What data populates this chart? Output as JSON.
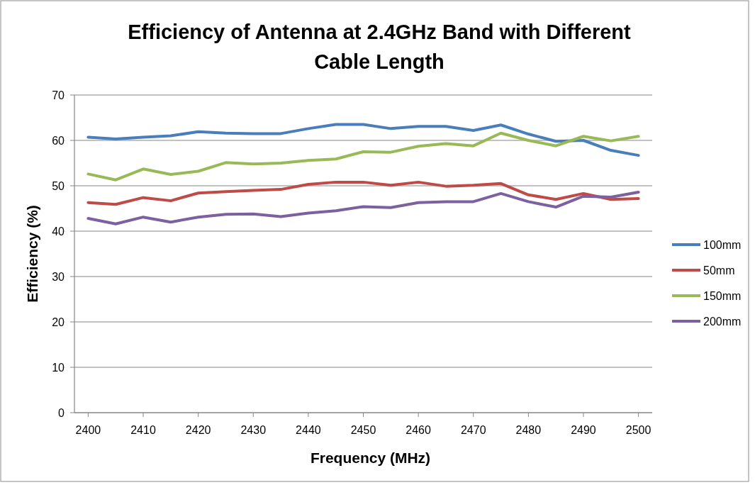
{
  "chart_data": {
    "type": "line",
    "title": "Efficiency of Antenna at 2.4GHz Band with Different Cable Length",
    "xlabel": "Frequency  (MHz)",
    "ylabel": "Efficiency (%)",
    "x": [
      2400,
      2405,
      2410,
      2415,
      2420,
      2425,
      2430,
      2435,
      2440,
      2445,
      2450,
      2455,
      2460,
      2465,
      2470,
      2475,
      2480,
      2485,
      2490,
      2495,
      2500
    ],
    "series": [
      {
        "name": "100mm",
        "color": "#4a7ebb",
        "values": [
          60.7,
          60.3,
          60.7,
          61.0,
          61.9,
          61.6,
          61.5,
          61.5,
          62.6,
          63.5,
          63.5,
          62.6,
          63.1,
          63.1,
          62.2,
          63.4,
          61.4,
          59.8,
          60.0,
          57.8,
          56.7
        ]
      },
      {
        "name": "50mm",
        "color": "#be4b48",
        "values": [
          46.3,
          45.9,
          47.4,
          46.7,
          48.4,
          48.7,
          49.0,
          49.2,
          50.3,
          50.8,
          50.8,
          50.1,
          50.8,
          49.9,
          50.1,
          50.5,
          48.0,
          47.0,
          48.3,
          47.0,
          47.2
        ]
      },
      {
        "name": "150mm",
        "color": "#98b954",
        "values": [
          52.6,
          51.3,
          53.7,
          52.5,
          53.2,
          55.1,
          54.8,
          55.0,
          55.6,
          55.9,
          57.5,
          57.4,
          58.7,
          59.3,
          58.8,
          61.6,
          60.0,
          58.8,
          60.9,
          59.9,
          60.9
        ]
      },
      {
        "name": "200mm",
        "color": "#7d60a0",
        "values": [
          42.8,
          41.6,
          43.1,
          42.0,
          43.1,
          43.7,
          43.8,
          43.2,
          44.0,
          44.5,
          45.4,
          45.2,
          46.3,
          46.5,
          46.5,
          48.3,
          46.5,
          45.3,
          47.7,
          47.5,
          48.6
        ]
      }
    ],
    "xlim": [
      2397.5,
      2502.5
    ],
    "xticks": [
      2400,
      2410,
      2420,
      2430,
      2440,
      2450,
      2460,
      2470,
      2480,
      2490,
      2500
    ],
    "ylim": [
      0,
      70
    ],
    "yticks": [
      0,
      10,
      20,
      30,
      40,
      50,
      60,
      70
    ],
    "grid": "y",
    "legend": "right",
    "marker": "none",
    "line_style": "solid"
  }
}
